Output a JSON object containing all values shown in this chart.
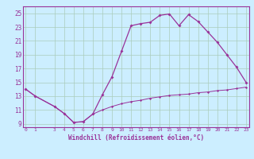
{
  "xlabel": "Windchill (Refroidissement éolien,°C)",
  "bg_color": "#cceeff",
  "line_color": "#993399",
  "grid_color": "#aaccbb",
  "x_values": [
    0,
    1,
    3,
    4,
    5,
    6,
    7,
    8,
    9,
    10,
    11,
    12,
    13,
    14,
    15,
    16,
    17,
    18,
    19,
    20,
    21,
    22,
    23
  ],
  "y_upper": [
    14.0,
    13.0,
    11.5,
    10.5,
    9.2,
    9.3,
    10.4,
    13.2,
    15.8,
    19.5,
    23.2,
    23.5,
    23.7,
    24.7,
    24.9,
    23.2,
    24.8,
    23.8,
    22.3,
    20.8,
    19.0,
    17.2,
    15.0
  ],
  "y_lower": [
    14.0,
    13.0,
    11.5,
    10.5,
    9.2,
    9.3,
    10.4,
    11.0,
    11.5,
    11.9,
    12.2,
    12.4,
    12.7,
    12.9,
    13.1,
    13.2,
    13.3,
    13.5,
    13.6,
    13.8,
    13.9,
    14.1,
    14.3
  ],
  "ylim": [
    8.5,
    26.0
  ],
  "yticks": [
    9,
    11,
    13,
    15,
    17,
    19,
    21,
    23,
    25
  ],
  "xlim": [
    -0.3,
    23.3
  ],
  "xticks": [
    0,
    1,
    3,
    4,
    5,
    6,
    7,
    8,
    9,
    10,
    11,
    12,
    13,
    14,
    15,
    16,
    17,
    18,
    19,
    20,
    21,
    22,
    23
  ]
}
